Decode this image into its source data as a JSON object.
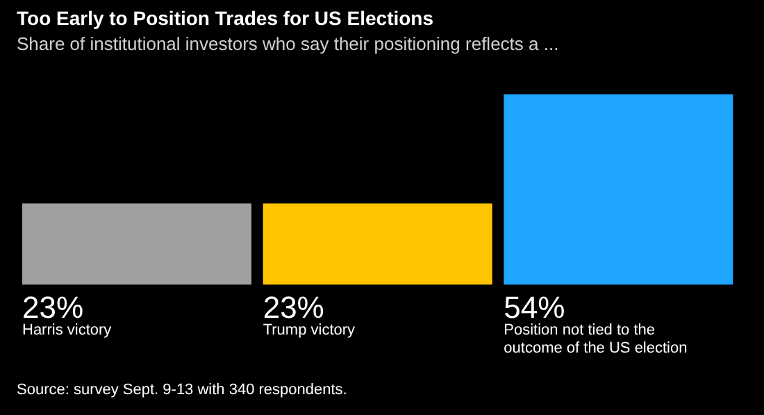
{
  "chart_data": {
    "type": "bar",
    "title": "Too Early to Position Trades for US Elections",
    "subtitle": "Share of institutional investors who say their positioning reflects a ...",
    "categories": [
      "Harris victory",
      "Trump victory",
      "Position not tied to the outcome of the US election"
    ],
    "values": [
      23,
      23,
      54
    ],
    "colors": [
      "#a0a0a0",
      "#ffc400",
      "#1fa6ff"
    ],
    "value_labels": [
      "23%",
      "23%",
      "54%"
    ],
    "annotations": [
      "Source: survey Sept. 9-13 with 340 respondents."
    ]
  }
}
